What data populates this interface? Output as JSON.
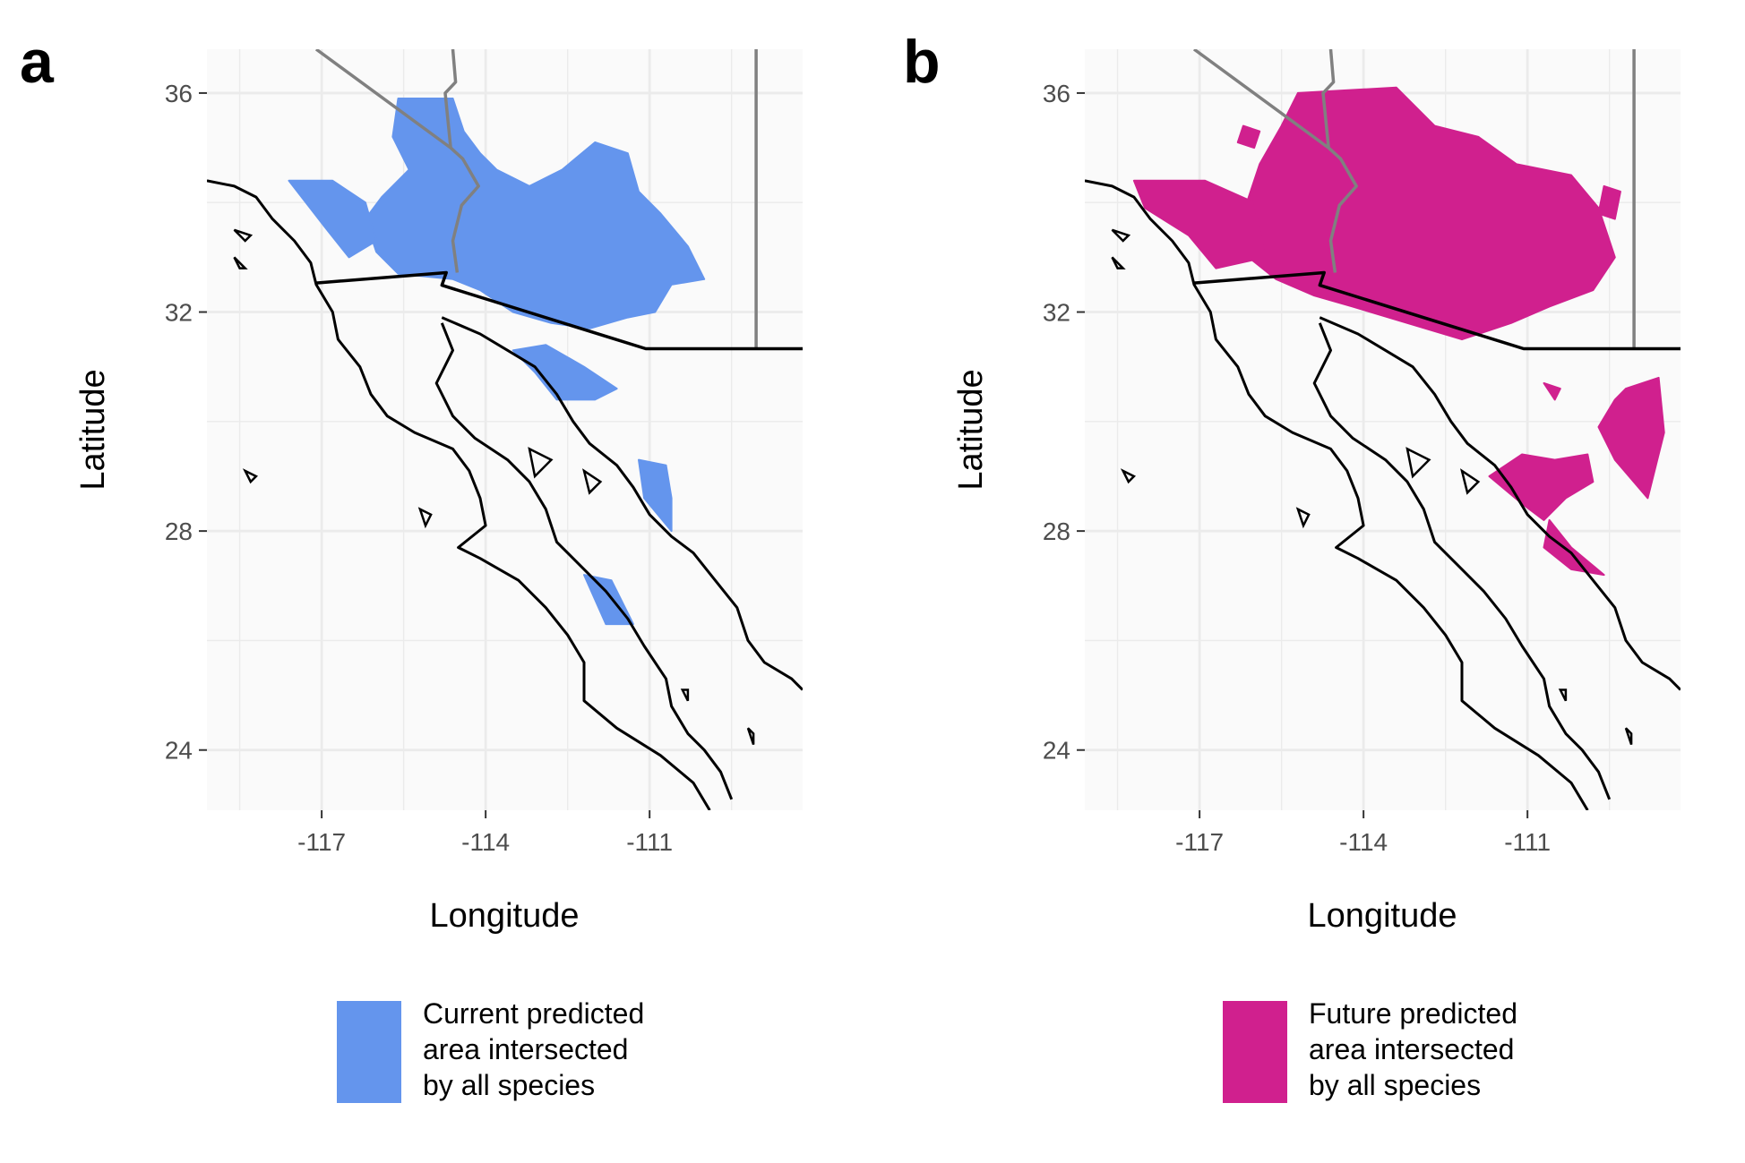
{
  "figure": {
    "panels": [
      {
        "letter": "a",
        "xlabel": "Longitude",
        "ylabel": "Latitude",
        "legend": {
          "color": "#6495ED",
          "lines": [
            "Current predicted",
            "area intersected",
            "by all species"
          ]
        }
      },
      {
        "letter": "b",
        "xlabel": "Longitude",
        "ylabel": "Latitude",
        "legend": {
          "color": "#D0208E",
          "lines": [
            "Future predicted",
            "area intersected",
            "by all species"
          ]
        }
      }
    ],
    "colors": {
      "panel_background": "#FAFAFA",
      "grid": "#EBEBEB",
      "coastline": "#000000",
      "state_border": "#808080",
      "current_area": "#6495ED",
      "future_area": "#D0208E"
    }
  },
  "chart_data": [
    {
      "type": "map",
      "panel": "a",
      "xlabel": "Longitude",
      "ylabel": "Latitude",
      "xlim": [
        -119.1,
        -108.2
      ],
      "ylim": [
        22.9,
        36.8
      ],
      "xticks": [
        -117,
        -114,
        -111
      ],
      "yticks": [
        24,
        28,
        32,
        36
      ],
      "series_name": "Current predicted area intersected by all species",
      "color": "#6495ED",
      "regions": [
        {
          "name": "main",
          "polygon": [
            [
              -115.6,
              35.9
            ],
            [
              -114.6,
              35.9
            ],
            [
              -114.4,
              35.3
            ],
            [
              -114.1,
              34.9
            ],
            [
              -113.8,
              34.6
            ],
            [
              -113.2,
              34.3
            ],
            [
              -112.6,
              34.6
            ],
            [
              -112.0,
              35.1
            ],
            [
              -111.4,
              34.9
            ],
            [
              -111.2,
              34.2
            ],
            [
              -110.8,
              33.8
            ],
            [
              -110.3,
              33.2
            ],
            [
              -110.0,
              32.6
            ],
            [
              -110.6,
              32.5
            ],
            [
              -110.9,
              32.0
            ],
            [
              -111.4,
              31.9
            ],
            [
              -112.1,
              31.7
            ],
            [
              -112.8,
              31.8
            ],
            [
              -113.5,
              32.0
            ],
            [
              -114.1,
              32.4
            ],
            [
              -114.6,
              32.6
            ],
            [
              -115.6,
              32.7
            ],
            [
              -116.0,
              33.1
            ],
            [
              -116.2,
              33.7
            ],
            [
              -115.9,
              34.1
            ],
            [
              -115.4,
              34.6
            ],
            [
              -115.7,
              35.2
            ]
          ]
        },
        {
          "name": "west",
          "polygon": [
            [
              -117.6,
              34.4
            ],
            [
              -116.8,
              34.4
            ],
            [
              -116.2,
              34.0
            ],
            [
              -116.0,
              33.3
            ],
            [
              -116.5,
              33.0
            ],
            [
              -116.9,
              33.5
            ]
          ]
        },
        {
          "name": "south-1",
          "polygon": [
            [
              -113.5,
              31.3
            ],
            [
              -112.9,
              31.4
            ],
            [
              -112.2,
              31.0
            ],
            [
              -111.6,
              30.6
            ],
            [
              -112.0,
              30.4
            ],
            [
              -112.7,
              30.4
            ],
            [
              -113.1,
              30.9
            ]
          ]
        },
        {
          "name": "south-2",
          "polygon": [
            [
              -111.2,
              29.3
            ],
            [
              -110.7,
              29.2
            ],
            [
              -110.6,
              28.6
            ],
            [
              -110.6,
              28.0
            ],
            [
              -111.1,
              28.6
            ]
          ]
        },
        {
          "name": "south-3",
          "polygon": [
            [
              -112.2,
              27.2
            ],
            [
              -111.7,
              27.1
            ],
            [
              -111.3,
              26.3
            ],
            [
              -111.8,
              26.3
            ]
          ]
        }
      ]
    },
    {
      "type": "map",
      "panel": "b",
      "xlabel": "Longitude",
      "ylabel": "Latitude",
      "xlim": [
        -119.1,
        -108.2
      ],
      "ylim": [
        22.9,
        36.8
      ],
      "xticks": [
        -117,
        -114,
        -111
      ],
      "yticks": [
        24,
        28,
        32,
        36
      ],
      "series_name": "Future predicted area intersected by all species",
      "color": "#D0208E",
      "regions": [
        {
          "name": "main",
          "polygon": [
            [
              -115.2,
              36.0
            ],
            [
              -113.4,
              36.1
            ],
            [
              -112.7,
              35.4
            ],
            [
              -111.9,
              35.2
            ],
            [
              -111.2,
              34.7
            ],
            [
              -110.2,
              34.5
            ],
            [
              -109.7,
              33.9
            ],
            [
              -109.4,
              33.0
            ],
            [
              -109.8,
              32.4
            ],
            [
              -110.6,
              32.1
            ],
            [
              -111.3,
              31.8
            ],
            [
              -112.2,
              31.5
            ],
            [
              -113.2,
              31.8
            ],
            [
              -114.2,
              32.1
            ],
            [
              -114.9,
              32.3
            ],
            [
              -115.6,
              32.6
            ],
            [
              -116.1,
              33.0
            ],
            [
              -116.2,
              33.8
            ],
            [
              -115.9,
              34.7
            ],
            [
              -115.5,
              35.4
            ]
          ]
        },
        {
          "name": "west",
          "polygon": [
            [
              -118.2,
              34.4
            ],
            [
              -116.9,
              34.4
            ],
            [
              -116.0,
              34.0
            ],
            [
              -115.8,
              33.0
            ],
            [
              -116.7,
              32.8
            ],
            [
              -117.2,
              33.4
            ],
            [
              -118.0,
              33.9
            ]
          ]
        },
        {
          "name": "north-isolated",
          "polygon": [
            [
              -116.2,
              35.4
            ],
            [
              -115.9,
              35.3
            ],
            [
              -116.0,
              35.0
            ],
            [
              -116.3,
              35.1
            ]
          ]
        },
        {
          "name": "east-isolated",
          "polygon": [
            [
              -109.6,
              34.3
            ],
            [
              -109.3,
              34.2
            ],
            [
              -109.4,
              33.7
            ],
            [
              -109.7,
              33.8
            ]
          ]
        },
        {
          "name": "sonora-1",
          "polygon": [
            [
              -111.1,
              29.4
            ],
            [
              -110.5,
              29.3
            ],
            [
              -109.9,
              29.4
            ],
            [
              -109.8,
              28.9
            ],
            [
              -110.3,
              28.6
            ],
            [
              -110.7,
              28.2
            ],
            [
              -111.1,
              28.5
            ],
            [
              -111.7,
              29.0
            ]
          ]
        },
        {
          "name": "sonora-2",
          "polygon": [
            [
              -110.6,
              28.2
            ],
            [
              -110.2,
              27.7
            ],
            [
              -109.6,
              27.2
            ],
            [
              -110.2,
              27.3
            ],
            [
              -110.7,
              27.7
            ]
          ]
        },
        {
          "name": "sonora-3",
          "polygon": [
            [
              -109.2,
              30.6
            ],
            [
              -108.6,
              30.8
            ],
            [
              -108.5,
              29.8
            ],
            [
              -108.8,
              28.6
            ],
            [
              -109.4,
              29.3
            ],
            [
              -109.7,
              29.9
            ],
            [
              -109.4,
              30.4
            ]
          ]
        },
        {
          "name": "sonora-small",
          "polygon": [
            [
              -110.7,
              30.7
            ],
            [
              -110.4,
              30.6
            ],
            [
              -110.5,
              30.4
            ]
          ]
        }
      ]
    }
  ]
}
